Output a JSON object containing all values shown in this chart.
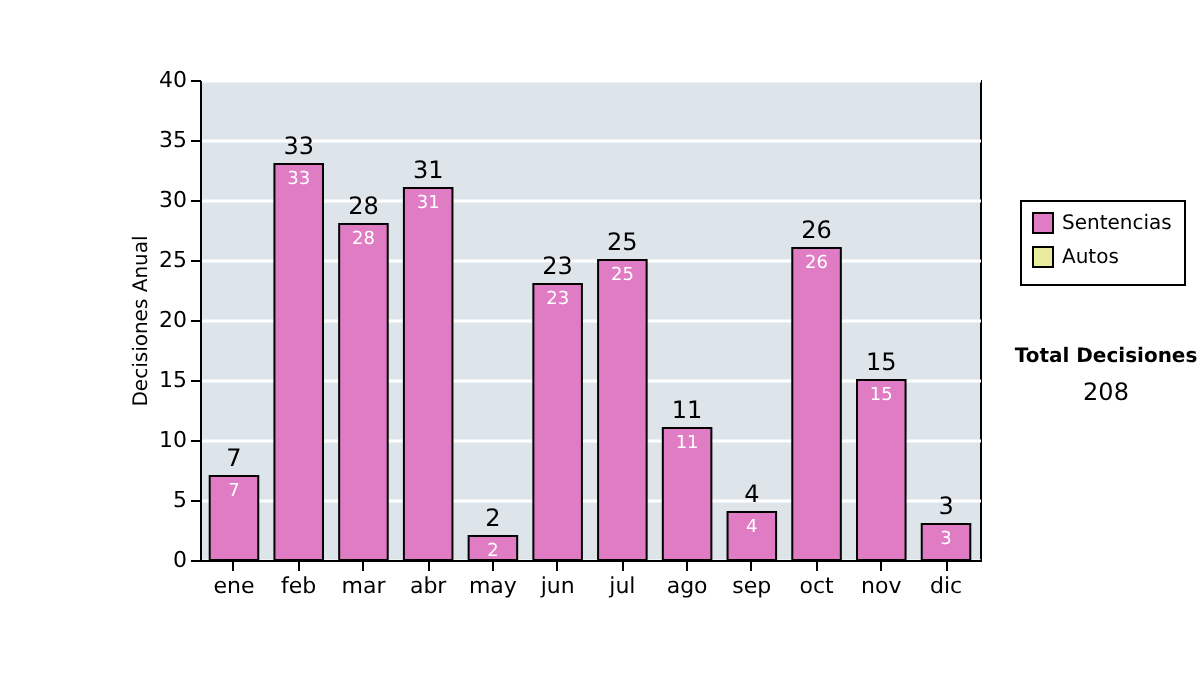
{
  "chart_data": {
    "type": "bar",
    "ylabel": "Decisiones Anual",
    "categories": [
      "ene",
      "feb",
      "mar",
      "abr",
      "may",
      "jun",
      "jul",
      "ago",
      "sep",
      "oct",
      "nov",
      "dic"
    ],
    "series": [
      {
        "name": "Sentencias",
        "color": "#e07cc4",
        "values": [
          7,
          33,
          28,
          31,
          2,
          23,
          25,
          11,
          4,
          26,
          15,
          3
        ]
      },
      {
        "name": "Autos",
        "color": "#e8ec9c",
        "values": [
          null,
          null,
          null,
          null,
          null,
          null,
          null,
          null,
          null,
          null,
          null,
          null
        ]
      }
    ],
    "data_labels": true,
    "totals": [
      "7",
      "33",
      "28",
      "31",
      "2",
      "23",
      "25",
      "11",
      "4",
      "26",
      "15",
      "3"
    ],
    "ylim": [
      0,
      40
    ],
    "yticks": [
      0,
      5,
      10,
      15,
      20,
      25,
      30,
      35,
      40
    ],
    "grid": "y",
    "legend": "right",
    "annotations": [
      "Total Decisiones",
      "208"
    ]
  }
}
